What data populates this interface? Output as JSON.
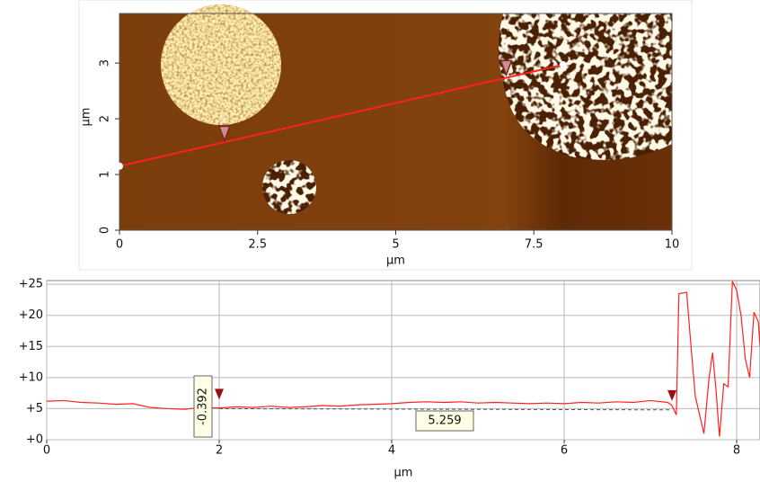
{
  "chart_data": [
    {
      "type": "image",
      "xlabel": "µm",
      "ylabel": "µm",
      "xlim": [
        0,
        10
      ],
      "ylim": [
        0,
        3.89
      ],
      "xticks": [
        0,
        2.5,
        5,
        7.5,
        10
      ],
      "yticks": [
        0,
        1,
        2,
        3
      ],
      "profile_line": {
        "x": [
          0,
          8.03
        ],
        "y": [
          1.15,
          2.97
        ],
        "color": "#ff2020"
      },
      "markers": {
        "x": [
          1.9,
          7.0
        ],
        "y": [
          1.72,
          2.9
        ]
      }
    },
    {
      "type": "line",
      "xlabel": "µm",
      "xlim": [
        0,
        8.27
      ],
      "ylim": [
        0,
        25.6
      ],
      "xticks": [
        0,
        2,
        4,
        6,
        8
      ],
      "yticks": [
        {
          "value": 0,
          "label": "+0"
        },
        {
          "value": 5,
          "label": "+5"
        },
        {
          "value": 10,
          "label": "+10"
        },
        {
          "value": 15,
          "label": "+15"
        },
        {
          "value": 20,
          "label": "+20"
        },
        {
          "value": 25,
          "label": "+25"
        }
      ],
      "grid": true,
      "series": [
        {
          "color": "#ff2020",
          "x": [
            0,
            0.2,
            0.4,
            0.6,
            0.8,
            1.0,
            1.2,
            1.4,
            1.6,
            1.8,
            2.0,
            2.2,
            2.4,
            2.6,
            2.8,
            3.0,
            3.2,
            3.4,
            3.6,
            3.8,
            4.0,
            4.2,
            4.4,
            4.6,
            4.8,
            5.0,
            5.2,
            5.4,
            5.6,
            5.8,
            6.0,
            6.2,
            6.4,
            6.6,
            6.8,
            7.0,
            7.2,
            7.25,
            7.3,
            7.33,
            7.42,
            7.47,
            7.52,
            7.57,
            7.62,
            7.68,
            7.72,
            7.76,
            7.8,
            7.85,
            7.9,
            7.95,
            8.0,
            8.05,
            8.1,
            8.15,
            8.2,
            8.25,
            8.27
          ],
          "values": [
            6.2,
            6.3,
            6.0,
            5.9,
            5.7,
            5.8,
            5.2,
            5.0,
            4.9,
            5.2,
            5.1,
            5.3,
            5.2,
            5.4,
            5.2,
            5.3,
            5.5,
            5.4,
            5.6,
            5.7,
            5.8,
            6.0,
            6.1,
            6.0,
            6.1,
            5.9,
            6.0,
            5.9,
            5.8,
            5.9,
            5.8,
            6.0,
            5.9,
            6.1,
            6.0,
            6.3,
            6.0,
            5.5,
            4.0,
            23.5,
            23.7,
            15,
            7,
            4,
            1,
            10,
            14,
            8,
            0.5,
            9,
            8.5,
            25.5,
            24,
            20,
            13,
            10,
            20.5,
            19,
            15
          ]
        }
      ],
      "reference_line": {
        "x": [
          2,
          7.25
        ],
        "y": [
          5.0,
          4.8
        ]
      },
      "cursors": [
        2,
        7.25
      ],
      "annotations": [
        "-0.392",
        "5.259"
      ]
    }
  ]
}
